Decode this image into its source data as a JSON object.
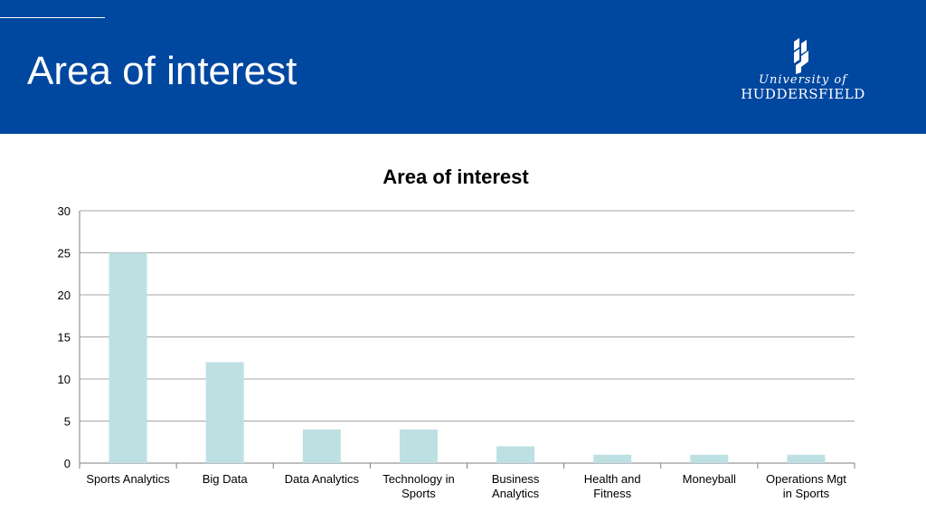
{
  "slide": {
    "title": "Area of interest"
  },
  "logo": {
    "line1": "University of",
    "line2": "HUDDERSFIELD"
  },
  "colors": {
    "header": "#0047a0",
    "bar": "#bde0e3",
    "grid": "#a6a6a6"
  },
  "chart_data": {
    "type": "bar",
    "title": "Area of interest",
    "categories": [
      "Sports Analytics",
      "Big Data",
      "Data Analytics",
      "Technology in Sports",
      "Business Analytics",
      "Health and Fitness",
      "Moneyball",
      "Operations Mgt in Sports"
    ],
    "category_lines": [
      [
        "Sports Analytics"
      ],
      [
        "Big Data"
      ],
      [
        "Data Analytics"
      ],
      [
        "Technology in",
        "Sports"
      ],
      [
        "Business",
        "Analytics"
      ],
      [
        "Health and",
        "Fitness"
      ],
      [
        "Moneyball"
      ],
      [
        "Operations Mgt",
        "in Sports"
      ]
    ],
    "values": [
      25,
      12,
      4,
      4,
      2,
      1,
      1,
      1
    ],
    "xlabel": "",
    "ylabel": "",
    "ylim": [
      0,
      30
    ],
    "yticks": [
      0,
      5,
      10,
      15,
      20,
      25,
      30
    ],
    "grid": true,
    "legend": "none"
  }
}
